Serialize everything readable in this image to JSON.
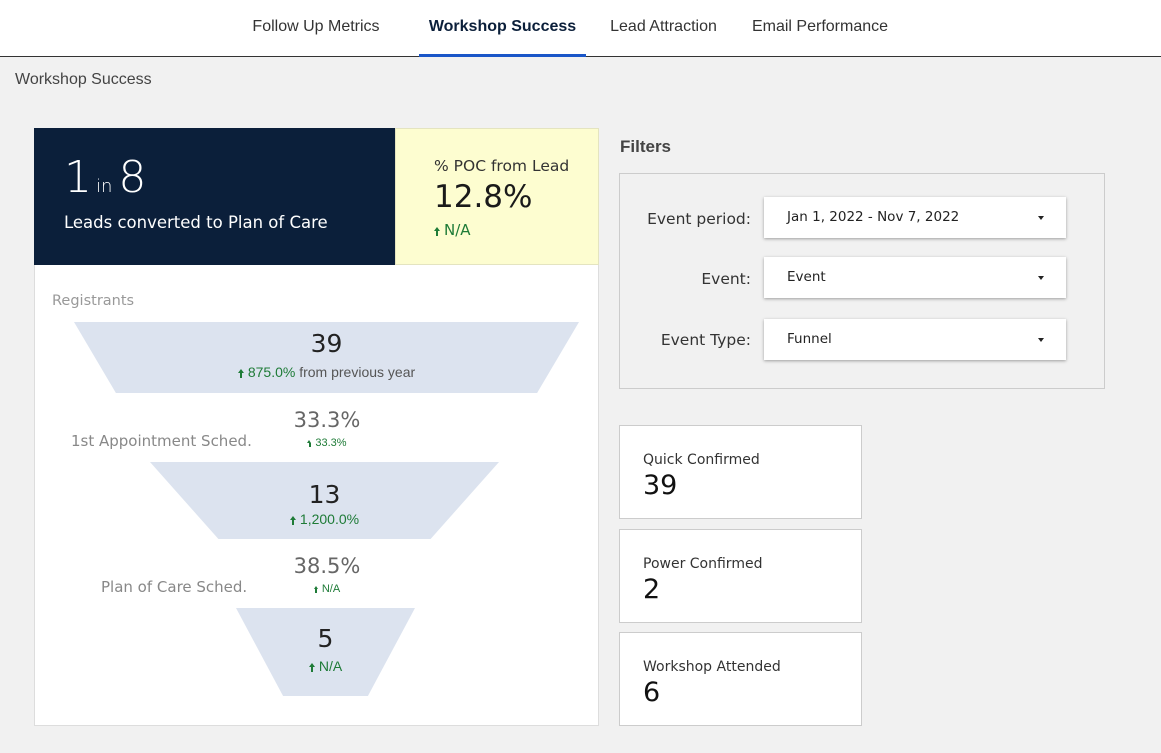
{
  "nav": {
    "tabs": [
      {
        "label": "Follow Up Metrics",
        "active": false
      },
      {
        "label": "Workshop Success",
        "active": true
      },
      {
        "label": "Lead Attraction",
        "active": false
      },
      {
        "label": "Email Performance",
        "active": false
      }
    ]
  },
  "page": {
    "title": "Workshop Success"
  },
  "hero": {
    "ratio_num": "1",
    "ratio_in": "in",
    "ratio_den": "8",
    "label": "Leads converted to Plan of Care"
  },
  "poc": {
    "label": "% POC from Lead",
    "value": "12.8%",
    "trend": "N/A"
  },
  "funnel": {
    "heading": "Registrants",
    "stages": [
      {
        "value": "39",
        "trend": "875.0%",
        "trend_suffix": "from previous year"
      },
      {
        "value": "13",
        "trend": "1,200.0%"
      },
      {
        "value": "5",
        "trend": "N/A"
      }
    ],
    "conversions": [
      {
        "label": "1st Appointment Sched.",
        "rate": "33.3%",
        "trend": "33.3%"
      },
      {
        "label": "Plan of Care Sched.",
        "rate": "38.5%",
        "trend": "N/A"
      }
    ]
  },
  "filters": {
    "title": "Filters",
    "items": [
      {
        "label": "Event period:",
        "value": "Jan 1, 2022 - Nov 7, 2022"
      },
      {
        "label": "Event:",
        "value": "Event"
      },
      {
        "label": "Event Type:",
        "value": "Funnel"
      }
    ]
  },
  "kpis": [
    {
      "label": "Quick Confirmed",
      "value": "39"
    },
    {
      "label": "Power Confirmed",
      "value": "2"
    },
    {
      "label": "Workshop Attended",
      "value": "6"
    }
  ],
  "colors": {
    "navy": "#0b1f3a",
    "accent": "#1a56c8",
    "positive": "#1e7b37",
    "poc_bg": "#fdfdd0",
    "funnel_fill": "#dce3ef"
  }
}
